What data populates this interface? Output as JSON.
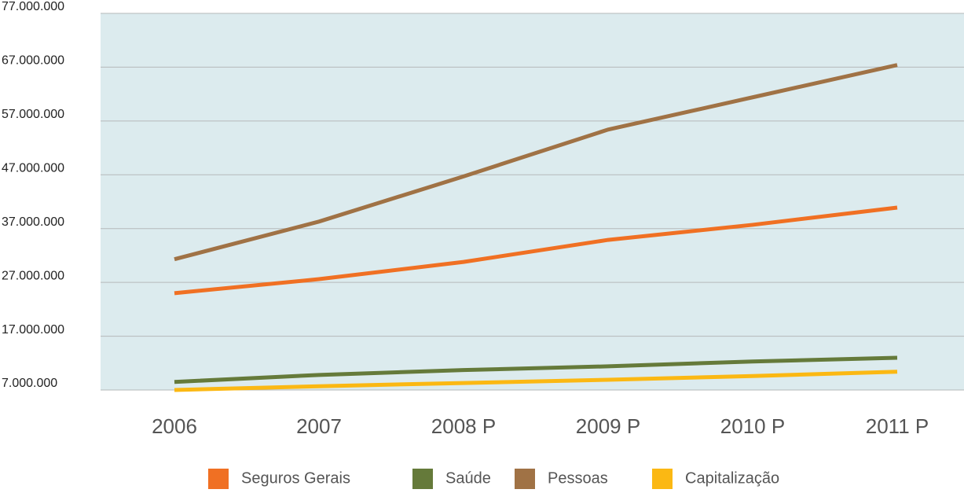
{
  "chart_data": {
    "type": "line",
    "categories": [
      "2006",
      "2007",
      "2008 P",
      "2009 P",
      "2010 P",
      "2011 P"
    ],
    "series": [
      {
        "name": "Seguros Gerais",
        "color": "#f07023",
        "values": [
          25000000,
          27600000,
          30800000,
          34900000,
          37700000,
          40900000
        ]
      },
      {
        "name": "Saúde",
        "color": "#657a3a",
        "values": [
          8500000,
          9800000,
          10700000,
          11400000,
          12300000,
          13000000
        ]
      },
      {
        "name": "Pessoas",
        "color": "#a07245",
        "values": [
          31300000,
          38300000,
          46700000,
          55400000,
          61400000,
          67400000
        ]
      },
      {
        "name": "Capitalização",
        "color": "#fbb813",
        "values": [
          7000000,
          7700000,
          8300000,
          8900000,
          9600000,
          10400000
        ]
      }
    ],
    "ylim": [
      7000000,
      77000000
    ],
    "yticks": [
      {
        "value": 7000000,
        "label": "7.000.000"
      },
      {
        "value": 17000000,
        "label": "17.000.000"
      },
      {
        "value": 27000000,
        "label": "27.000.000"
      },
      {
        "value": 37000000,
        "label": "37.000.000"
      },
      {
        "value": 47000000,
        "label": "47.000.000"
      },
      {
        "value": 57000000,
        "label": "57.000.000"
      },
      {
        "value": 67000000,
        "label": "67.000.000"
      },
      {
        "value": 77000000,
        "label": "77.000.000"
      }
    ],
    "grid": true,
    "legend": "bottom"
  }
}
